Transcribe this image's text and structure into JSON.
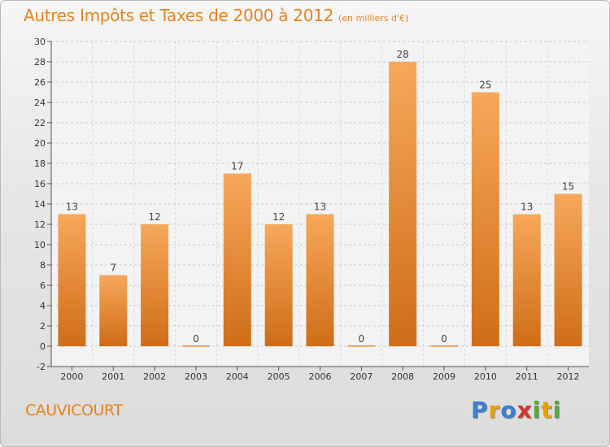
{
  "header": {
    "title": "Autres Impôts et Taxes de 2000 à 2012",
    "subtitle": "(en milliers d'€)"
  },
  "footer": {
    "place": "CAUVICOURT",
    "logo_letters": [
      "P",
      "r",
      "o",
      "x",
      "i",
      "t",
      "i"
    ],
    "logo_colors": [
      "#3a7fd0",
      "#e6a100",
      "#3a7fd0",
      "#d9322a",
      "#56a838",
      "#e6a100",
      "#56a838"
    ]
  },
  "colors": {
    "bar_light": "#f7a85a",
    "bar_dark": "#cf6d18",
    "axis": "#555555",
    "grid": "#c9c9c9",
    "accent": "#e8821e"
  },
  "chart_data": {
    "type": "bar",
    "categories": [
      "2000",
      "2001",
      "2002",
      "2003",
      "2004",
      "2005",
      "2006",
      "2007",
      "2008",
      "2009",
      "2010",
      "2011",
      "2012"
    ],
    "values": [
      13,
      7,
      12,
      0,
      17,
      12,
      13,
      0,
      28,
      0,
      25,
      13,
      15
    ],
    "ylim": [
      -2,
      30
    ],
    "yticks": [
      -2,
      0,
      2,
      4,
      6,
      8,
      10,
      12,
      14,
      16,
      18,
      20,
      22,
      24,
      26,
      28,
      30
    ],
    "grid": true,
    "data_labels": true
  }
}
